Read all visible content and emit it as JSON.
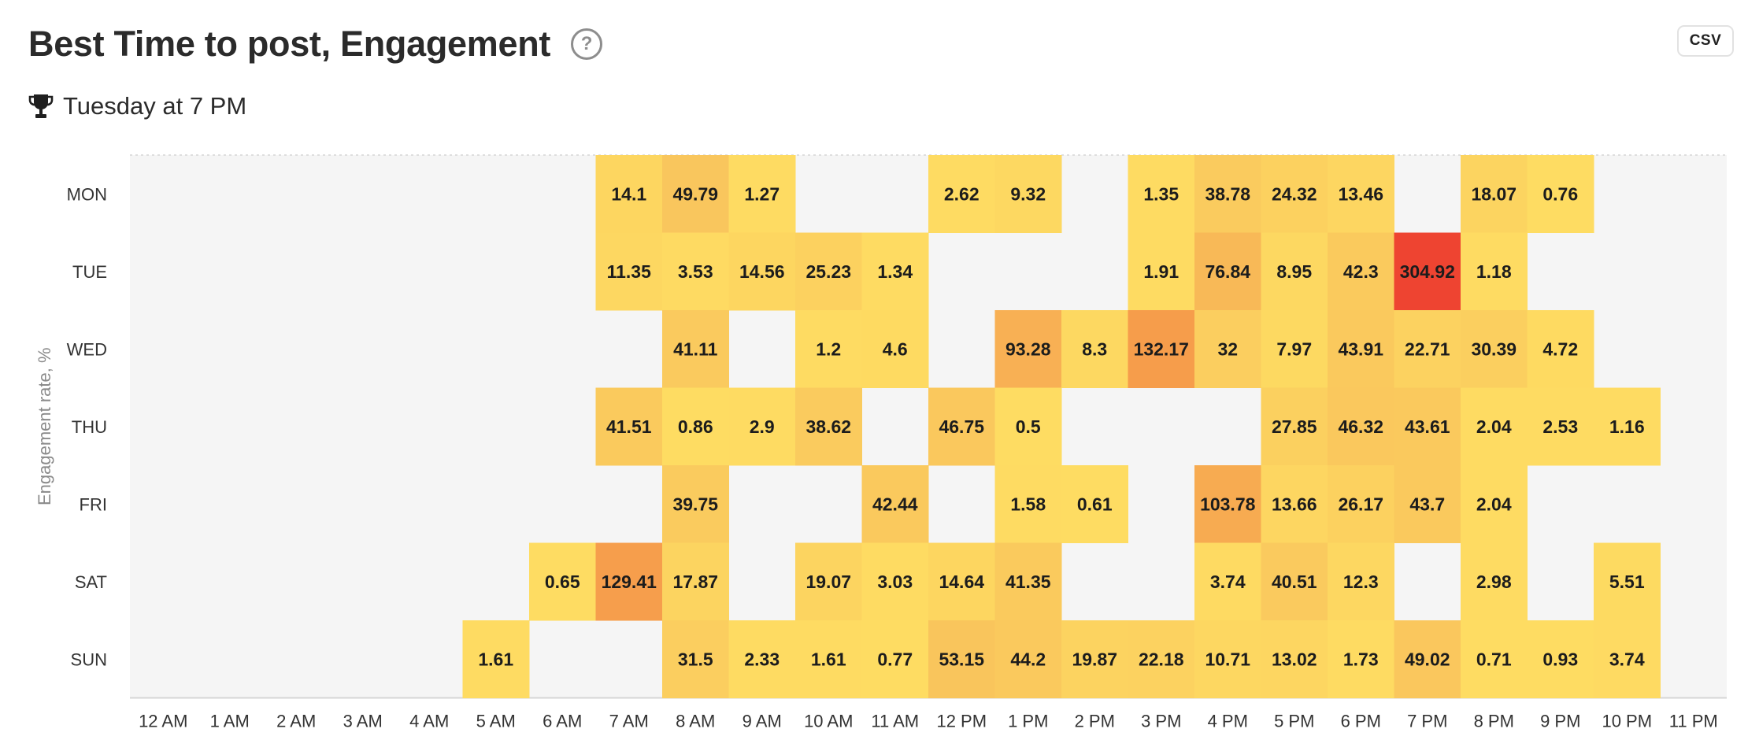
{
  "header": {
    "title": "Best Time to post, Engagement",
    "help_icon": "question-circle-icon",
    "csv_label": "CSV"
  },
  "best_time": {
    "icon": "trophy-icon",
    "text": "Tuesday at 7 PM"
  },
  "chart_data": {
    "type": "heatmap",
    "title": "Best Time to post, Engagement",
    "ylabel": "Engagement rate, %",
    "xlabel": "",
    "rows": [
      "MON",
      "TUE",
      "WED",
      "THU",
      "FRI",
      "SAT",
      "SUN"
    ],
    "columns": [
      "12 AM",
      "1 AM",
      "2 AM",
      "3 AM",
      "4 AM",
      "5 AM",
      "6 AM",
      "7 AM",
      "8 AM",
      "9 AM",
      "10 AM",
      "11 AM",
      "12 PM",
      "1 PM",
      "2 PM",
      "3 PM",
      "4 PM",
      "5 PM",
      "6 PM",
      "7 PM",
      "8 PM",
      "9 PM",
      "10 PM",
      "11 PM"
    ],
    "values": [
      [
        null,
        null,
        null,
        null,
        null,
        null,
        null,
        14.1,
        49.79,
        1.27,
        null,
        null,
        2.62,
        9.32,
        null,
        1.35,
        38.78,
        24.32,
        13.46,
        null,
        18.07,
        0.76,
        null,
        null
      ],
      [
        null,
        null,
        null,
        null,
        null,
        null,
        null,
        11.35,
        3.53,
        14.56,
        25.23,
        1.34,
        null,
        null,
        null,
        1.91,
        76.84,
        8.95,
        42.3,
        304.92,
        1.18,
        null,
        null,
        null
      ],
      [
        null,
        null,
        null,
        null,
        null,
        null,
        null,
        null,
        41.11,
        null,
        1.2,
        4.6,
        null,
        93.28,
        8.3,
        132.17,
        32,
        7.97,
        43.91,
        22.71,
        30.39,
        4.72,
        null,
        null
      ],
      [
        null,
        null,
        null,
        null,
        null,
        null,
        null,
        41.51,
        0.86,
        2.9,
        38.62,
        null,
        46.75,
        0.5,
        null,
        null,
        null,
        27.85,
        46.32,
        43.61,
        2.04,
        2.53,
        1.16,
        null
      ],
      [
        null,
        null,
        null,
        null,
        null,
        null,
        null,
        null,
        39.75,
        null,
        null,
        42.44,
        null,
        1.58,
        0.61,
        null,
        103.78,
        13.66,
        26.17,
        43.7,
        2.04,
        null,
        null,
        null
      ],
      [
        null,
        null,
        null,
        null,
        null,
        null,
        0.65,
        129.41,
        17.87,
        null,
        19.07,
        3.03,
        14.64,
        41.35,
        null,
        null,
        3.74,
        40.51,
        12.3,
        null,
        2.98,
        null,
        5.51,
        null
      ],
      [
        null,
        null,
        null,
        null,
        null,
        1.61,
        null,
        null,
        31.5,
        2.33,
        1.61,
        0.77,
        53.15,
        44.2,
        19.87,
        22.18,
        10.71,
        13.02,
        1.73,
        49.02,
        0.71,
        0.93,
        3.74,
        null
      ]
    ],
    "colors": {
      "empty": "#f5f5f5",
      "low": "#fedc62",
      "mid": "#f9c45c",
      "high": "#f69a4a",
      "max": "#ee4431"
    },
    "grid": false,
    "legend": "none"
  }
}
